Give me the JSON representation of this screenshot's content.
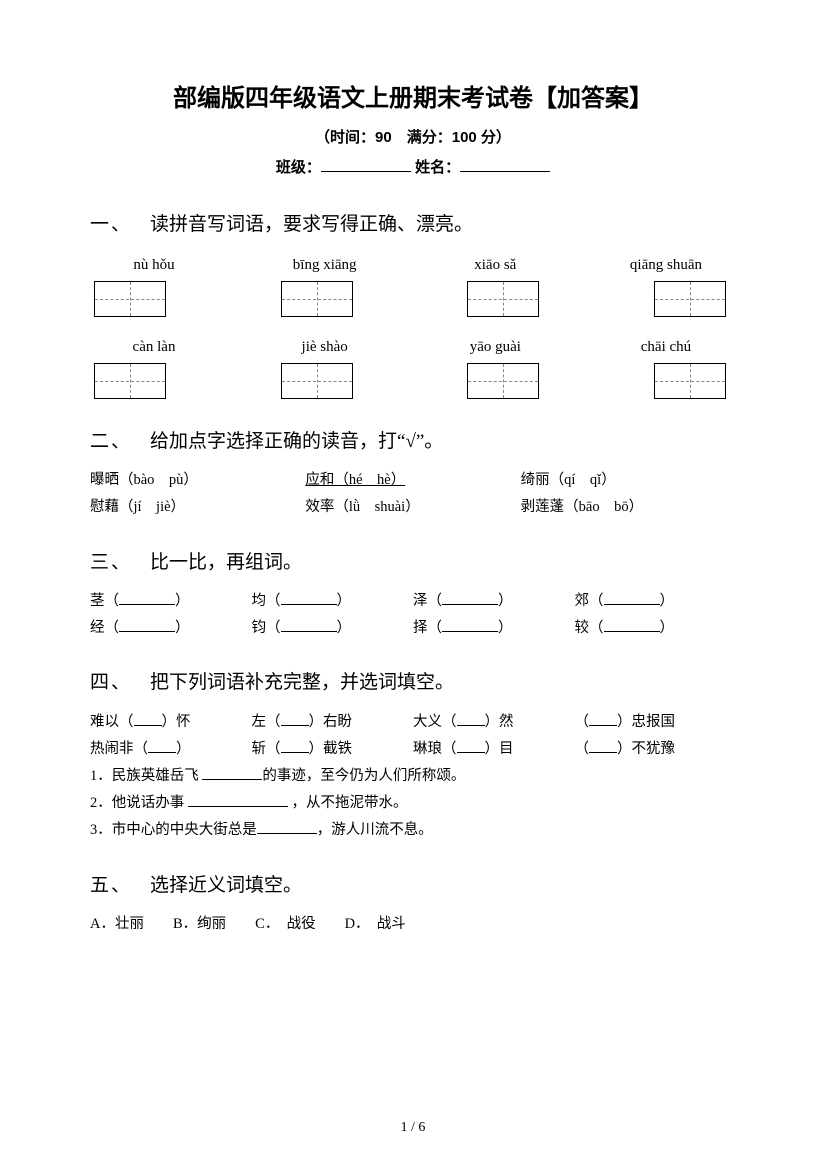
{
  "header": {
    "title": "部编版四年级语文上册期末考试卷【加答案】",
    "subtitle": "（时间：90　满分：100 分）",
    "class_label": "班级：",
    "name_label": "姓名："
  },
  "s1": {
    "num": "一、",
    "title": "读拼音写词语，要求写得正确、漂亮。",
    "row1": [
      "nù hǒu",
      "bīng xiāng",
      "xiāo sǎ",
      "qiāng shuān"
    ],
    "row2": [
      "càn làn",
      "jiè shào",
      "yāo guài",
      "chāi chú"
    ]
  },
  "s2": {
    "num": "二、",
    "title": "给加点字选择正确的读音，打“√”。",
    "items": [
      [
        "曝晒（bào　pù）",
        "应和（hé　hè）",
        "绮丽（qí　qǐ）"
      ],
      [
        "慰藉（jí　jiè）",
        "效率（lǜ　shuài）",
        "剥莲蓬（bāo　bō）"
      ]
    ]
  },
  "s3": {
    "num": "三、",
    "title": "比一比，再组词。",
    "items": [
      [
        "茎（",
        "均（",
        "泽（",
        "郊（"
      ],
      [
        "经（",
        "钧（",
        "择（",
        "较（"
      ]
    ]
  },
  "s4": {
    "num": "四、",
    "title": "把下列词语补充完整，并选词填空。",
    "idiom1": [
      "难以（",
      "）怀",
      "左（",
      "）右盼",
      "大义（",
      "）然",
      "（",
      "）忠报国"
    ],
    "idiom2": [
      "热闹非（",
      "）",
      "斩（",
      "）截铁",
      "琳琅（",
      "）目",
      "（",
      "）不犹豫"
    ],
    "sent1_a": "1．民族英雄岳飞 ",
    "sent1_b": "的事迹，至今仍为人们所称颂。",
    "sent2_a": "2．他说话办事 ",
    "sent2_b": " ，从不拖泥带水。",
    "sent3_a": "3．市中心的中央大街总是",
    "sent3_b": "，游人川流不息。"
  },
  "s5": {
    "num": "五、",
    "title": "选择近义词填空。",
    "options": "A．壮丽　　B．绚丽　　C．　战役　　D．　战斗"
  },
  "footer": "1 / 6"
}
